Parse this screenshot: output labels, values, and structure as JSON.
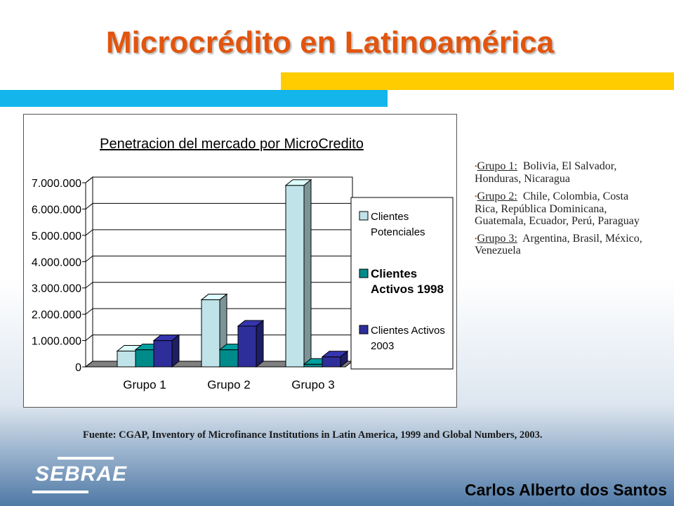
{
  "slide": {
    "title": "Microcrédito en Latinoamérica",
    "source": "Fuente: CGAP, Inventory of Microfinance Institutions in Latin America, 1999 and Global Numbers, 2003.",
    "author": "Carlos Alberto dos Santos",
    "logo_text": "SEBRAE"
  },
  "groups": [
    {
      "name": "Grupo 1:",
      "countries": "Bolivia, El Salvador, Honduras, Nicaragua"
    },
    {
      "name": "Grupo 2:",
      "countries": "Chile, Colombia, Costa Rica, República Dominicana, Guatemala, Ecuador, Perú, Paraguay"
    },
    {
      "name": "Grupo 3:",
      "countries": "Argentina, Brasil, México, Venezuela"
    }
  ],
  "colors": {
    "title": "#e2550e",
    "accent_yellow": "#ffcc00",
    "accent_cyan": "#13b5ea",
    "series": [
      "#bfe3e8",
      "#008b8b",
      "#2e2e9a"
    ]
  },
  "chart_data": {
    "type": "bar",
    "title": "Penetracion del mercado por MicroCredito",
    "categories": [
      "Grupo 1",
      "Grupo 2",
      "Grupo 3"
    ],
    "series": [
      {
        "name": "Clientes Potenciales",
        "values": [
          600000,
          2550000,
          6900000
        ]
      },
      {
        "name": "Clientes Activos 1998",
        "values": [
          650000,
          650000,
          100000
        ]
      },
      {
        "name": "Clientes Activos 2003",
        "values": [
          1000000,
          1550000,
          380000
        ]
      }
    ],
    "yticks": [
      "0",
      "1.000.000",
      "2.000.000",
      "3.000.000",
      "4.000.000",
      "5.000.000",
      "6.000.000",
      "7.000.000"
    ],
    "ylim": [
      0,
      7000000
    ],
    "legend": "right",
    "grid": true,
    "style": "3d"
  }
}
